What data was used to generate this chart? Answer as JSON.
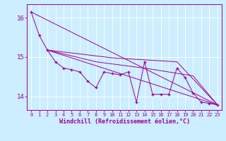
{
  "xlabel": "Windchill (Refroidissement éolien,°C)",
  "background_color": "#cceeff",
  "line_color": "#990099",
  "marker": "+",
  "xlim": [
    -0.5,
    23.5
  ],
  "ylim": [
    13.65,
    16.35
  ],
  "yticks": [
    14,
    15,
    16
  ],
  "xticks": [
    0,
    1,
    2,
    3,
    4,
    5,
    6,
    7,
    8,
    9,
    10,
    11,
    12,
    13,
    14,
    15,
    16,
    17,
    18,
    19,
    20,
    21,
    22,
    23
  ],
  "main_line": [
    [
      0,
      16.15
    ],
    [
      1,
      15.55
    ],
    [
      2,
      15.18
    ],
    [
      3,
      14.88
    ],
    [
      4,
      14.72
    ],
    [
      5,
      14.68
    ],
    [
      6,
      14.62
    ],
    [
      7,
      14.38
    ],
    [
      8,
      14.22
    ],
    [
      9,
      14.62
    ],
    [
      10,
      14.58
    ],
    [
      11,
      14.55
    ],
    [
      12,
      14.62
    ],
    [
      13,
      13.85
    ],
    [
      14,
      14.88
    ],
    [
      15,
      14.05
    ],
    [
      16,
      14.05
    ],
    [
      17,
      14.05
    ],
    [
      18,
      14.72
    ],
    [
      19,
      14.48
    ],
    [
      20,
      14.08
    ],
    [
      21,
      13.85
    ],
    [
      22,
      13.82
    ],
    [
      23,
      13.78
    ]
  ],
  "smooth_lines": [
    [
      [
        0,
        16.15
      ],
      [
        23,
        13.78
      ]
    ],
    [
      [
        2,
        15.18
      ],
      [
        23,
        13.78
      ]
    ],
    [
      [
        2,
        15.18
      ],
      [
        10,
        14.98
      ],
      [
        18,
        14.88
      ],
      [
        23,
        13.78
      ]
    ],
    [
      [
        2,
        15.18
      ],
      [
        8,
        14.88
      ],
      [
        14,
        14.72
      ],
      [
        20,
        14.52
      ],
      [
        23,
        13.78
      ]
    ]
  ]
}
